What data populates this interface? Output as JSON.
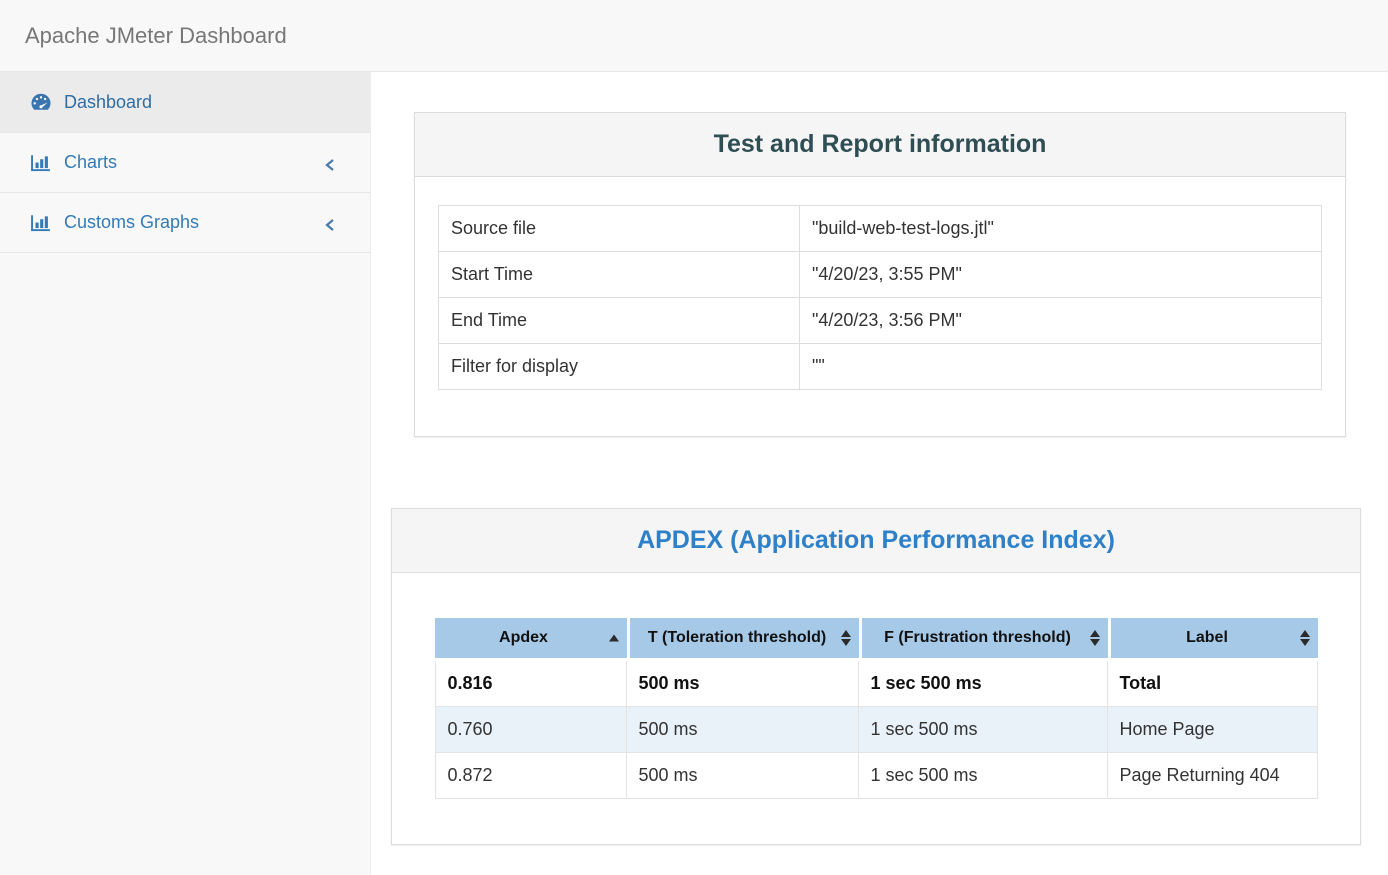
{
  "header": {
    "title": "Apache JMeter Dashboard"
  },
  "sidebar": {
    "items": [
      {
        "label": "Dashboard",
        "icon": "tachometer-icon",
        "active": true,
        "collapsible": false
      },
      {
        "label": "Charts",
        "icon": "bar-chart-icon",
        "active": false,
        "collapsible": true
      },
      {
        "label": "Customs Graphs",
        "icon": "bar-chart-icon",
        "active": false,
        "collapsible": true
      }
    ]
  },
  "panels": {
    "test_info": {
      "title": "Test and Report information",
      "rows": [
        {
          "label": "Source file",
          "value": "\"build-web-test-logs.jtl\""
        },
        {
          "label": "Start Time",
          "value": "\"4/20/23, 3:55 PM\""
        },
        {
          "label": "End Time",
          "value": "\"4/20/23, 3:56 PM\""
        },
        {
          "label": "Filter for display",
          "value": "\"\""
        }
      ]
    },
    "apdex": {
      "title": "APDEX (Application Performance Index)",
      "columns": [
        "Apdex",
        "T (Toleration threshold)",
        "F (Frustration threshold)",
        "Label"
      ],
      "sort": {
        "column": "Apdex",
        "direction": "ascending"
      },
      "rows": [
        {
          "apdex": "0.816",
          "t": "500 ms",
          "f": "1 sec 500 ms",
          "label": "Total",
          "emphasis": true
        },
        {
          "apdex": "0.760",
          "t": "500 ms",
          "f": "1 sec 500 ms",
          "label": "Home Page",
          "emphasis": false
        },
        {
          "apdex": "0.872",
          "t": "500 ms",
          "f": "1 sec 500 ms",
          "label": "Page Returning 404",
          "emphasis": false
        }
      ]
    }
  },
  "colors": {
    "sidebar_link": "#337ab7",
    "navbar_title": "#777777",
    "test_info_title": "#2e4e54",
    "apdex_title": "#2e80c8",
    "apdex_header_bg": "#a6c9e8",
    "apdex_stripe_bg": "#e9f1f9"
  }
}
